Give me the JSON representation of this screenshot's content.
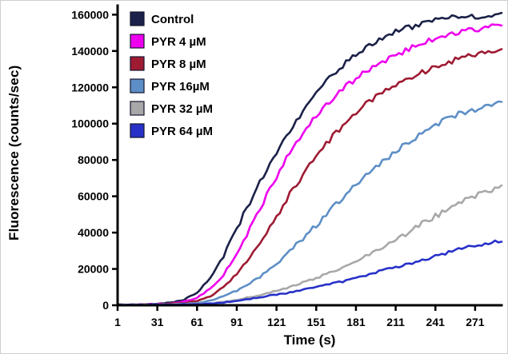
{
  "chart_data": {
    "type": "line",
    "title": "",
    "xlabel": "Time (s)",
    "ylabel": "Fluorescence (counts/sec)",
    "xlim": [
      1,
      291
    ],
    "ylim": [
      0,
      165000
    ],
    "xticks": [
      1,
      31,
      61,
      91,
      121,
      151,
      181,
      211,
      241,
      271
    ],
    "yticks": [
      0,
      20000,
      40000,
      60000,
      80000,
      100000,
      120000,
      140000,
      160000
    ],
    "grid": false,
    "legend_position": "upper-left",
    "axis_color": "#000000",
    "x": [
      1,
      11,
      21,
      31,
      41,
      51,
      61,
      71,
      81,
      91,
      101,
      111,
      121,
      131,
      141,
      151,
      161,
      171,
      181,
      191,
      201,
      211,
      221,
      231,
      241,
      251,
      261,
      271,
      281,
      291
    ],
    "series": [
      {
        "name": "Control",
        "color": "#1b2148",
        "values": [
          300,
          400,
          500,
          800,
          1500,
          3000,
          7000,
          15000,
          27000,
          42000,
          57000,
          71000,
          84000,
          96000,
          107000,
          117000,
          125000,
          132000,
          138000,
          143000,
          147000,
          151000,
          153000,
          155000,
          157000,
          158000,
          158500,
          159000,
          160000,
          161000
        ]
      },
      {
        "name": "PYR 4 µM",
        "color": "#ee00ee",
        "values": [
          200,
          300,
          400,
          600,
          1000,
          2000,
          4000,
          9000,
          17000,
          28000,
          42000,
          57000,
          71000,
          84000,
          95000,
          104000,
          112000,
          119000,
          125000,
          130000,
          134000,
          138000,
          141000,
          144000,
          147000,
          149000,
          151000,
          152000,
          153000,
          154000
        ]
      },
      {
        "name": "PYR 8 µM",
        "color": "#9e1b32",
        "values": [
          200,
          250,
          300,
          500,
          800,
          1200,
          2500,
          5000,
          10000,
          17000,
          26000,
          37000,
          49000,
          61000,
          72000,
          82000,
          91000,
          99000,
          106000,
          112000,
          117000,
          121000,
          125000,
          128000,
          131000,
          134000,
          136000,
          138000,
          140000,
          141000
        ]
      },
      {
        "name": "PYR 16µM",
        "color": "#5d8fc6",
        "values": [
          200,
          250,
          300,
          400,
          600,
          800,
          1200,
          2500,
          5000,
          8000,
          12000,
          17000,
          23000,
          30000,
          37000,
          44000,
          52000,
          59000,
          66000,
          73000,
          79000,
          85000,
          90000,
          95000,
          99000,
          103000,
          106000,
          108000,
          110000,
          112000
        ]
      },
      {
        "name": "PYR 32 µM",
        "color": "#a8a8a8",
        "values": [
          150,
          200,
          250,
          300,
          400,
          500,
          700,
          1000,
          2000,
          3000,
          4500,
          6000,
          8000,
          10000,
          12500,
          15000,
          18000,
          21000,
          24000,
          28000,
          32000,
          36000,
          40000,
          45000,
          49000,
          53000,
          57000,
          60000,
          63000,
          66000
        ]
      },
      {
        "name": "PYR 64 µM",
        "color": "#2731c8",
        "values": [
          150,
          200,
          250,
          300,
          400,
          500,
          600,
          900,
          1500,
          2500,
          3500,
          4500,
          6000,
          7000,
          8500,
          10000,
          11500,
          13000,
          15000,
          17000,
          19000,
          21000,
          23000,
          25000,
          27000,
          29000,
          31000,
          32500,
          34000,
          35000
        ]
      }
    ]
  }
}
